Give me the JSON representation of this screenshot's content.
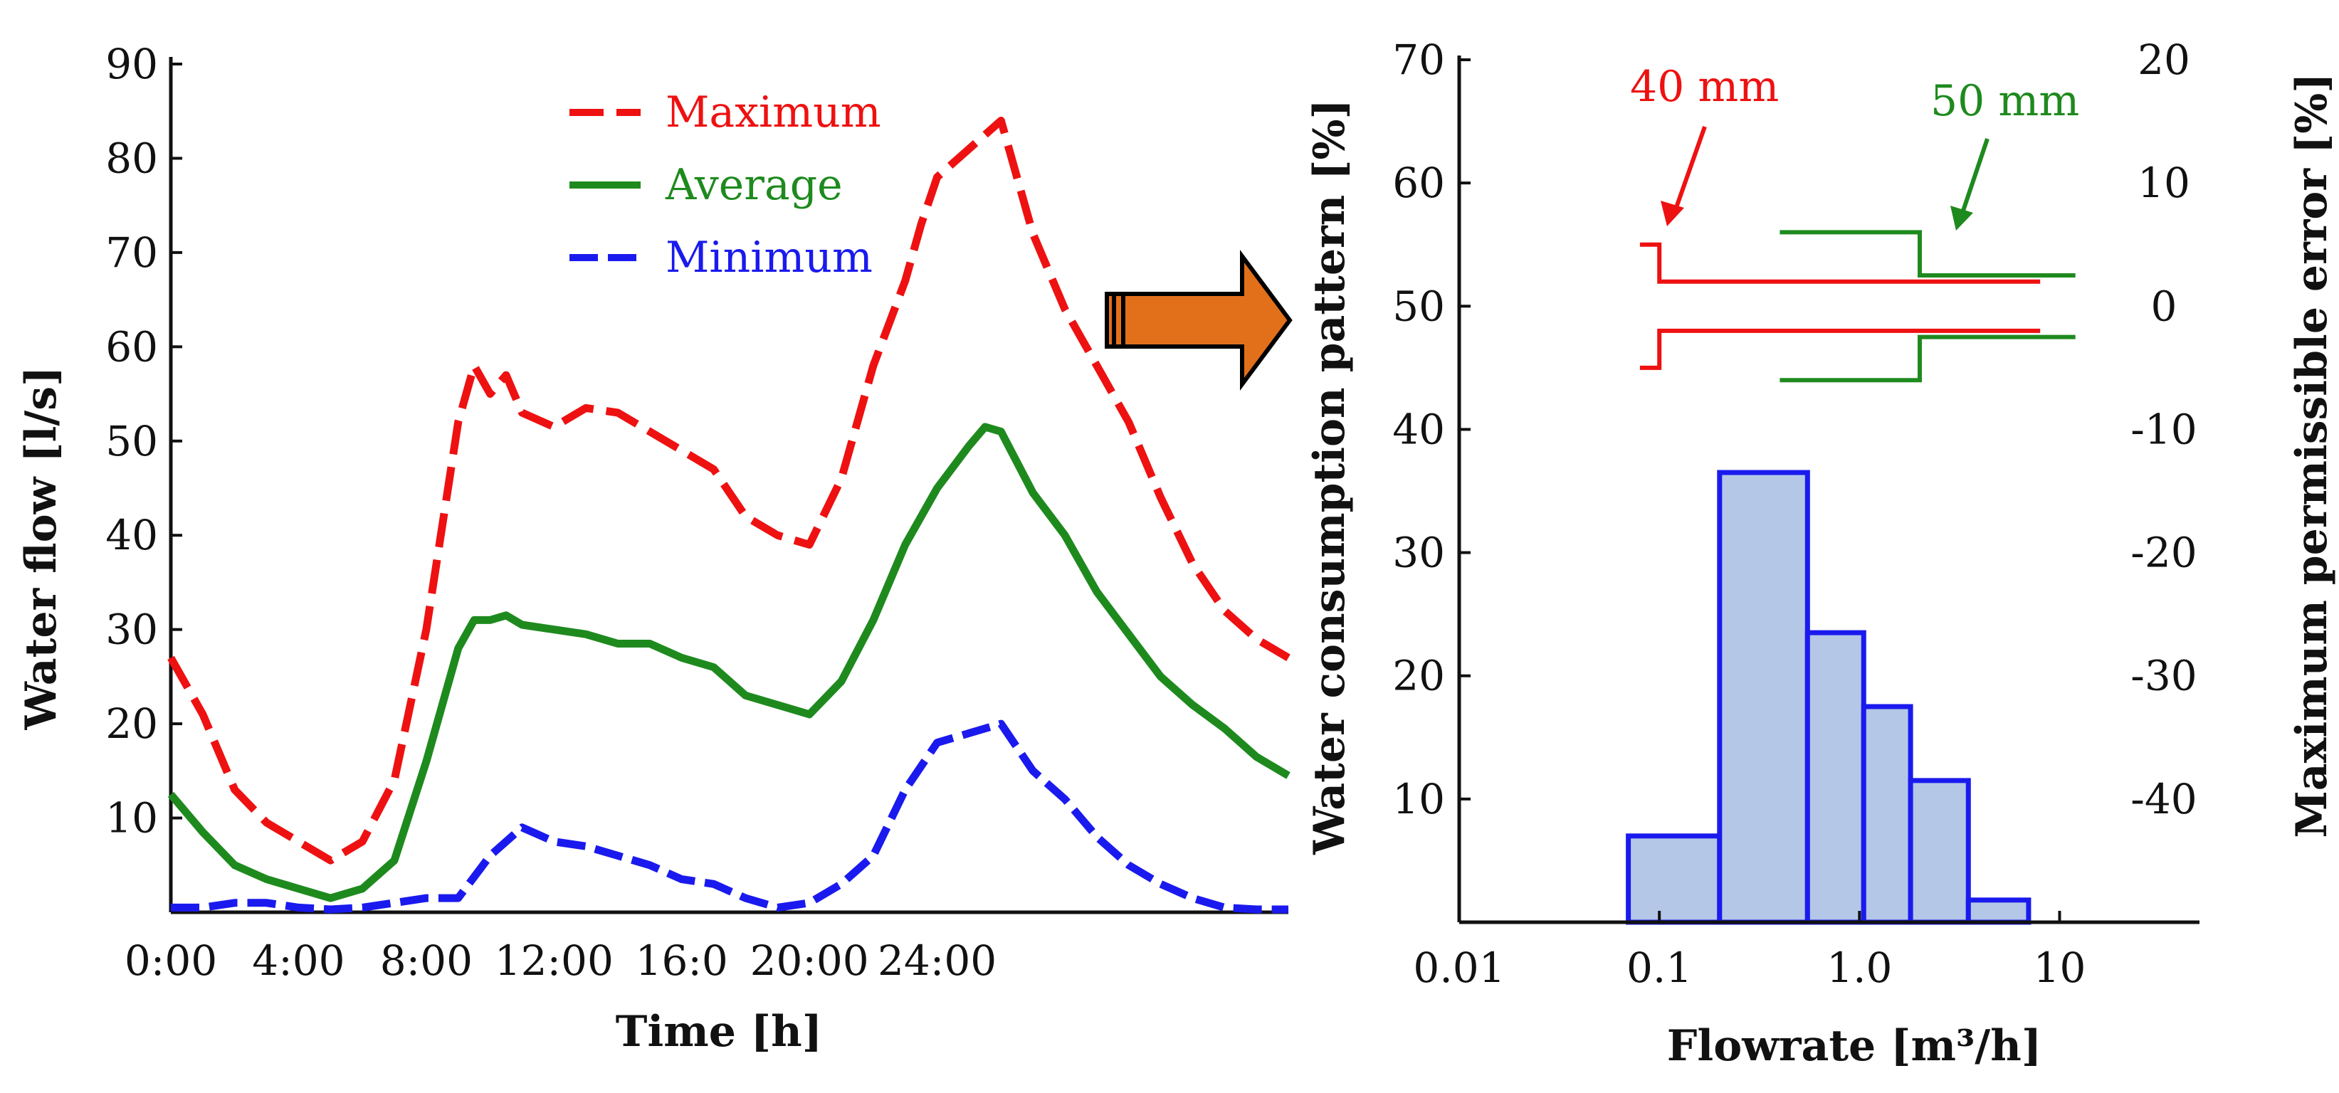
{
  "colors": {
    "maximum": "#ee1111",
    "average": "#1e8a1e",
    "minimum": "#1a1aee",
    "axis": "#111111",
    "hist_fill": "#b4c7e7",
    "hist_edge": "#1a1aee",
    "arrow_fill": "#e2701b",
    "red_40": "#ee1111",
    "green_50": "#1e8a1e"
  },
  "chart_data": [
    {
      "type": "line",
      "xlabel": "Time [h]",
      "ylabel": "Water flow [l/s]",
      "ylim": [
        0,
        90
      ],
      "xlim_hours": [
        0,
        35
      ],
      "x_tick_labels": [
        "0:00",
        "4:00",
        "8:00",
        "12:00",
        "16:0",
        "20:00",
        "24:00"
      ],
      "x_tick_hours": [
        0,
        4,
        8,
        12,
        16,
        20,
        24
      ],
      "y_tick_labels": [
        "10",
        "20",
        "30",
        "40",
        "50",
        "60",
        "70",
        "80",
        "90"
      ],
      "y_ticks": [
        10,
        20,
        30,
        40,
        50,
        60,
        70,
        80,
        90
      ],
      "legend": [
        "Maximum",
        "Average",
        "Minimum"
      ],
      "series": [
        {
          "name": "Maximum",
          "style": "dashed",
          "x": [
            0,
            1,
            2,
            3,
            4,
            5,
            6,
            7,
            8,
            9,
            9.5,
            10,
            10.5,
            11,
            12,
            13,
            14,
            15,
            16,
            17,
            18,
            19,
            20,
            21,
            22,
            23,
            23.5,
            24,
            25,
            26,
            27,
            28,
            29,
            30,
            31,
            32,
            33,
            34,
            35
          ],
          "y": [
            27,
            21,
            13,
            9.5,
            7.5,
            5.5,
            7.5,
            14,
            30,
            52,
            58,
            55,
            57,
            53,
            51.5,
            53.5,
            53,
            51,
            49,
            47,
            42,
            40,
            39,
            46,
            58,
            67,
            73,
            78,
            81,
            84,
            72,
            64,
            58,
            52,
            44,
            37,
            32,
            29,
            27
          ]
        },
        {
          "name": "Average",
          "style": "solid",
          "x": [
            0,
            1,
            2,
            3,
            4,
            5,
            6,
            7,
            8,
            9,
            9.5,
            10,
            10.5,
            11,
            12,
            13,
            14,
            15,
            16,
            17,
            18,
            19,
            20,
            21,
            22,
            23,
            24,
            25,
            25.5,
            26,
            27,
            28,
            29,
            30,
            31,
            32,
            33,
            34,
            35
          ],
          "y": [
            12.5,
            8.5,
            5,
            3.5,
            2.5,
            1.5,
            2.5,
            5.5,
            16,
            28,
            31,
            31,
            31.5,
            30.5,
            30,
            29.5,
            28.5,
            28.5,
            27,
            26,
            23,
            22,
            21,
            24.5,
            31,
            39,
            45,
            49.5,
            51.5,
            51,
            44.5,
            40,
            34,
            29.5,
            25,
            22,
            19.5,
            16.5,
            14.5
          ]
        },
        {
          "name": "Minimum",
          "style": "dashed",
          "x": [
            0,
            1,
            2,
            3,
            4,
            5,
            6,
            7,
            8,
            9,
            10,
            11,
            12,
            13,
            14,
            15,
            16,
            17,
            18,
            19,
            20,
            21,
            22,
            23,
            24,
            25,
            26,
            27,
            28,
            29,
            30,
            31,
            32,
            33,
            34,
            35
          ],
          "y": [
            0.5,
            0.5,
            1,
            1,
            0.5,
            0.3,
            0.5,
            1,
            1.5,
            1.5,
            6,
            9,
            7.5,
            7,
            6,
            5,
            3.5,
            3,
            1.5,
            0.5,
            1,
            3,
            6,
            13,
            18,
            19,
            20,
            15,
            12,
            8,
            5,
            3,
            1.5,
            0.5,
            0.3,
            0.3
          ]
        }
      ]
    },
    {
      "type": "bar",
      "xscale": "log",
      "xlabel": "Flowrate [m³/h]",
      "ylabel": "Water consumption pattern [%]",
      "ylim": [
        0,
        70
      ],
      "y_tick_labels": [
        "10",
        "20",
        "30",
        "40",
        "50",
        "60",
        "70"
      ],
      "y_ticks": [
        10,
        20,
        30,
        40,
        50,
        60,
        70
      ],
      "x_tick_labels": [
        "0.01",
        "0.1",
        "1.0",
        "10"
      ],
      "x_ticks": [
        0.01,
        0.1,
        1,
        10
      ],
      "xlim": [
        0.01,
        50
      ],
      "bins": [
        {
          "from": 0.07,
          "to": 0.2,
          "value": 7
        },
        {
          "from": 0.2,
          "to": 0.55,
          "value": 36.5
        },
        {
          "from": 0.55,
          "to": 1.05,
          "value": 23.5
        },
        {
          "from": 1.05,
          "to": 1.8,
          "value": 17.5
        },
        {
          "from": 1.8,
          "to": 3.5,
          "value": 11.5
        },
        {
          "from": 3.5,
          "to": 7,
          "value": 1.8
        }
      ],
      "secondary_axis": {
        "ylabel": "Maximum permissible error [%]",
        "ylim": [
          -50,
          20
        ],
        "tick_labels": [
          "20",
          "10",
          "0",
          "-10",
          "-20",
          "-30",
          "-40"
        ],
        "ticks": [
          20,
          10,
          0,
          -10,
          -20,
          -30,
          -40
        ]
      },
      "error_curves": [
        {
          "name": "40 mm",
          "upper": [
            {
              "q": 0.08,
              "e": 5
            },
            {
              "q": 0.1,
              "e": 5
            },
            {
              "q": 0.1,
              "e": 2
            },
            {
              "q": 8,
              "e": 2
            }
          ],
          "lower": [
            {
              "q": 0.08,
              "e": -5
            },
            {
              "q": 0.1,
              "e": -5
            },
            {
              "q": 0.1,
              "e": -2
            },
            {
              "q": 8,
              "e": -2
            }
          ]
        },
        {
          "name": "50 mm",
          "upper": [
            {
              "q": 0.4,
              "e": 6
            },
            {
              "q": 2,
              "e": 6
            },
            {
              "q": 2,
              "e": 2.5
            },
            {
              "q": 12,
              "e": 2.5
            }
          ],
          "lower": [
            {
              "q": 0.4,
              "e": -6
            },
            {
              "q": 2,
              "e": -6
            },
            {
              "q": 2,
              "e": -2.5
            },
            {
              "q": 12,
              "e": -2.5
            }
          ]
        }
      ],
      "annotations": [
        "40 mm",
        "50 mm"
      ]
    }
  ]
}
